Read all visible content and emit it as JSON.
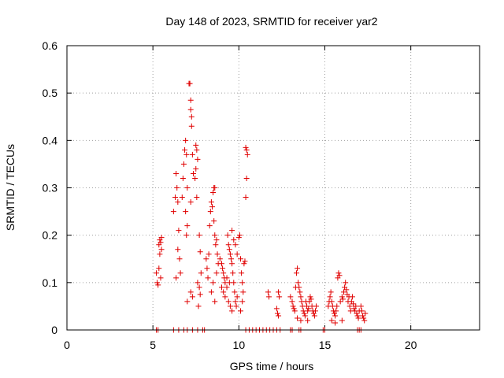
{
  "chart_data": {
    "type": "scatter",
    "title": "Day 148 of 2023, SRMTID for receiver yar2",
    "xlabel": "GPS time / hours",
    "ylabel": "SRMTID / TECUs",
    "xlim": [
      0,
      24
    ],
    "ylim": [
      0,
      0.6
    ],
    "x_ticks": [
      0,
      5,
      10,
      15,
      20
    ],
    "x_tick_labels": [
      "0",
      "5",
      "10",
      "15",
      "20"
    ],
    "y_ticks": [
      0,
      0.1,
      0.2,
      0.3,
      0.4,
      0.5,
      0.6
    ],
    "y_tick_labels": [
      "0",
      "0.1",
      "0.2",
      "0.3",
      "0.4",
      "0.5",
      "0.6"
    ],
    "grid": true,
    "marker": "+",
    "series": [
      {
        "name": "SRMTID",
        "color": "#e00000",
        "points": [
          [
            5.2,
            0.0
          ],
          [
            5.3,
            0.0
          ],
          [
            5.2,
            0.12
          ],
          [
            5.25,
            0.1
          ],
          [
            5.3,
            0.095
          ],
          [
            5.35,
            0.13
          ],
          [
            5.4,
            0.16
          ],
          [
            5.35,
            0.18
          ],
          [
            5.4,
            0.19
          ],
          [
            5.45,
            0.185
          ],
          [
            5.5,
            0.195
          ],
          [
            5.5,
            0.17
          ],
          [
            5.45,
            0.11
          ],
          [
            6.2,
            0.0
          ],
          [
            6.5,
            0.0
          ],
          [
            6.8,
            0.0
          ],
          [
            7.0,
            0.0
          ],
          [
            7.3,
            0.0
          ],
          [
            7.6,
            0.0
          ],
          [
            7.9,
            0.0
          ],
          [
            8.0,
            0.0
          ],
          [
            6.2,
            0.25
          ],
          [
            6.3,
            0.28
          ],
          [
            6.35,
            0.33
          ],
          [
            6.4,
            0.3
          ],
          [
            6.45,
            0.27
          ],
          [
            6.5,
            0.21
          ],
          [
            6.45,
            0.17
          ],
          [
            6.35,
            0.11
          ],
          [
            6.55,
            0.15
          ],
          [
            6.6,
            0.12
          ],
          [
            6.7,
            0.28
          ],
          [
            6.75,
            0.32
          ],
          [
            6.8,
            0.35
          ],
          [
            6.85,
            0.38
          ],
          [
            6.9,
            0.4
          ],
          [
            6.95,
            0.37
          ],
          [
            7.0,
            0.3
          ],
          [
            6.9,
            0.25
          ],
          [
            7.0,
            0.22
          ],
          [
            6.95,
            0.2
          ],
          [
            7.1,
            0.52
          ],
          [
            7.15,
            0.52
          ],
          [
            7.2,
            0.485
          ],
          [
            7.2,
            0.465
          ],
          [
            7.25,
            0.45
          ],
          [
            7.25,
            0.43
          ],
          [
            7.3,
            0.37
          ],
          [
            7.35,
            0.33
          ],
          [
            7.2,
            0.27
          ],
          [
            7.5,
            0.39
          ],
          [
            7.55,
            0.38
          ],
          [
            7.6,
            0.36
          ],
          [
            7.5,
            0.34
          ],
          [
            7.45,
            0.32
          ],
          [
            7.55,
            0.28
          ],
          [
            7.7,
            0.2
          ],
          [
            7.75,
            0.165
          ],
          [
            7.8,
            0.12
          ],
          [
            7.7,
            0.09
          ],
          [
            7.75,
            0.075
          ],
          [
            7.65,
            0.05
          ],
          [
            7.6,
            0.1
          ],
          [
            7.2,
            0.08
          ],
          [
            7.3,
            0.07
          ],
          [
            7.0,
            0.06
          ],
          [
            8.1,
            0.15
          ],
          [
            8.15,
            0.13
          ],
          [
            8.2,
            0.11
          ],
          [
            8.25,
            0.16
          ],
          [
            8.3,
            0.22
          ],
          [
            8.35,
            0.25
          ],
          [
            8.4,
            0.27
          ],
          [
            8.45,
            0.26
          ],
          [
            8.5,
            0.29
          ],
          [
            8.55,
            0.3
          ],
          [
            8.6,
            0.3
          ],
          [
            8.55,
            0.23
          ],
          [
            8.6,
            0.2
          ],
          [
            8.65,
            0.18
          ],
          [
            8.7,
            0.19
          ],
          [
            8.75,
            0.16
          ],
          [
            8.8,
            0.14
          ],
          [
            8.7,
            0.12
          ],
          [
            8.5,
            0.1
          ],
          [
            8.4,
            0.08
          ],
          [
            8.6,
            0.06
          ],
          [
            8.9,
            0.15
          ],
          [
            9.0,
            0.14
          ],
          [
            9.05,
            0.13
          ],
          [
            9.1,
            0.12
          ],
          [
            9.15,
            0.11
          ],
          [
            9.2,
            0.1
          ],
          [
            9.3,
            0.09
          ],
          [
            9.35,
            0.2
          ],
          [
            9.4,
            0.18
          ],
          [
            9.45,
            0.17
          ],
          [
            9.5,
            0.16
          ],
          [
            9.55,
            0.15
          ],
          [
            9.6,
            0.14
          ],
          [
            9.65,
            0.12
          ],
          [
            9.7,
            0.1
          ],
          [
            9.75,
            0.08
          ],
          [
            9.8,
            0.06
          ],
          [
            9.85,
            0.05
          ],
          [
            9.9,
            0.07
          ],
          [
            9.6,
            0.21
          ],
          [
            9.7,
            0.19
          ],
          [
            9.8,
            0.18
          ],
          [
            9.9,
            0.16
          ],
          [
            10.0,
            0.195
          ],
          [
            10.05,
            0.2
          ],
          [
            10.1,
            0.15
          ],
          [
            10.15,
            0.12
          ],
          [
            10.2,
            0.1
          ],
          [
            10.25,
            0.08
          ],
          [
            10.3,
            0.14
          ],
          [
            10.2,
            0.06
          ],
          [
            10.1,
            0.04
          ],
          [
            9.0,
            0.09
          ],
          [
            9.1,
            0.08
          ],
          [
            9.2,
            0.07
          ],
          [
            9.4,
            0.06
          ],
          [
            9.5,
            0.05
          ],
          [
            9.6,
            0.04
          ],
          [
            9.3,
            0.11
          ],
          [
            9.45,
            0.1
          ],
          [
            10.4,
            0.385
          ],
          [
            10.45,
            0.38
          ],
          [
            10.5,
            0.37
          ],
          [
            10.45,
            0.32
          ],
          [
            10.4,
            0.28
          ],
          [
            10.35,
            0.145
          ],
          [
            10.4,
            0.0
          ],
          [
            10.6,
            0.0
          ],
          [
            10.8,
            0.0
          ],
          [
            11.0,
            0.0
          ],
          [
            11.2,
            0.0
          ],
          [
            11.4,
            0.0
          ],
          [
            11.6,
            0.0
          ],
          [
            11.8,
            0.0
          ],
          [
            12.0,
            0.0
          ],
          [
            12.2,
            0.0
          ],
          [
            12.4,
            0.0
          ],
          [
            11.7,
            0.08
          ],
          [
            11.75,
            0.07
          ],
          [
            12.3,
            0.08
          ],
          [
            12.35,
            0.07
          ],
          [
            12.2,
            0.045
          ],
          [
            12.25,
            0.035
          ],
          [
            12.3,
            0.03
          ],
          [
            13.0,
            0.0
          ],
          [
            13.1,
            0.0
          ],
          [
            13.5,
            0.0
          ],
          [
            13.6,
            0.0
          ],
          [
            14.9,
            0.0
          ],
          [
            15.0,
            0.0
          ],
          [
            16.9,
            0.0
          ],
          [
            17.0,
            0.0
          ],
          [
            17.1,
            0.0
          ],
          [
            13.0,
            0.07
          ],
          [
            13.1,
            0.06
          ],
          [
            13.15,
            0.05
          ],
          [
            13.2,
            0.045
          ],
          [
            13.25,
            0.04
          ],
          [
            13.3,
            0.09
          ],
          [
            13.35,
            0.12
          ],
          [
            13.4,
            0.13
          ],
          [
            13.45,
            0.1
          ],
          [
            13.5,
            0.09
          ],
          [
            13.55,
            0.08
          ],
          [
            13.6,
            0.07
          ],
          [
            13.65,
            0.06
          ],
          [
            13.7,
            0.05
          ],
          [
            13.75,
            0.04
          ],
          [
            13.8,
            0.035
          ],
          [
            13.85,
            0.03
          ],
          [
            13.9,
            0.06
          ],
          [
            13.95,
            0.05
          ],
          [
            14.0,
            0.04
          ],
          [
            14.05,
            0.045
          ],
          [
            14.1,
            0.06
          ],
          [
            14.15,
            0.07
          ],
          [
            14.2,
            0.065
          ],
          [
            14.25,
            0.05
          ],
          [
            14.3,
            0.04
          ],
          [
            14.35,
            0.035
          ],
          [
            14.4,
            0.03
          ],
          [
            14.45,
            0.04
          ],
          [
            14.5,
            0.05
          ],
          [
            13.4,
            0.025
          ],
          [
            13.6,
            0.02
          ],
          [
            14.0,
            0.02
          ],
          [
            15.2,
            0.05
          ],
          [
            15.25,
            0.06
          ],
          [
            15.3,
            0.07
          ],
          [
            15.35,
            0.08
          ],
          [
            15.4,
            0.06
          ],
          [
            15.45,
            0.05
          ],
          [
            15.5,
            0.04
          ],
          [
            15.55,
            0.035
          ],
          [
            15.6,
            0.03
          ],
          [
            15.65,
            0.04
          ],
          [
            15.7,
            0.05
          ],
          [
            15.75,
            0.11
          ],
          [
            15.8,
            0.12
          ],
          [
            15.85,
            0.115
          ],
          [
            15.9,
            0.06
          ],
          [
            16.0,
            0.07
          ],
          [
            16.05,
            0.065
          ],
          [
            16.1,
            0.08
          ],
          [
            16.15,
            0.09
          ],
          [
            16.2,
            0.1
          ],
          [
            16.25,
            0.085
          ],
          [
            16.3,
            0.075
          ],
          [
            16.35,
            0.06
          ],
          [
            16.4,
            0.07
          ],
          [
            16.45,
            0.05
          ],
          [
            16.5,
            0.04
          ],
          [
            16.55,
            0.06
          ],
          [
            16.6,
            0.07
          ],
          [
            16.65,
            0.055
          ],
          [
            16.7,
            0.045
          ],
          [
            16.75,
            0.04
          ],
          [
            16.8,
            0.05
          ],
          [
            16.85,
            0.035
          ],
          [
            16.9,
            0.03
          ],
          [
            16.95,
            0.025
          ],
          [
            17.0,
            0.04
          ],
          [
            17.1,
            0.05
          ],
          [
            17.15,
            0.04
          ],
          [
            17.2,
            0.03
          ],
          [
            17.25,
            0.025
          ],
          [
            17.3,
            0.02
          ],
          [
            17.35,
            0.035
          ],
          [
            15.4,
            0.02
          ],
          [
            15.6,
            0.015
          ],
          [
            16.0,
            0.02
          ]
        ]
      }
    ]
  }
}
